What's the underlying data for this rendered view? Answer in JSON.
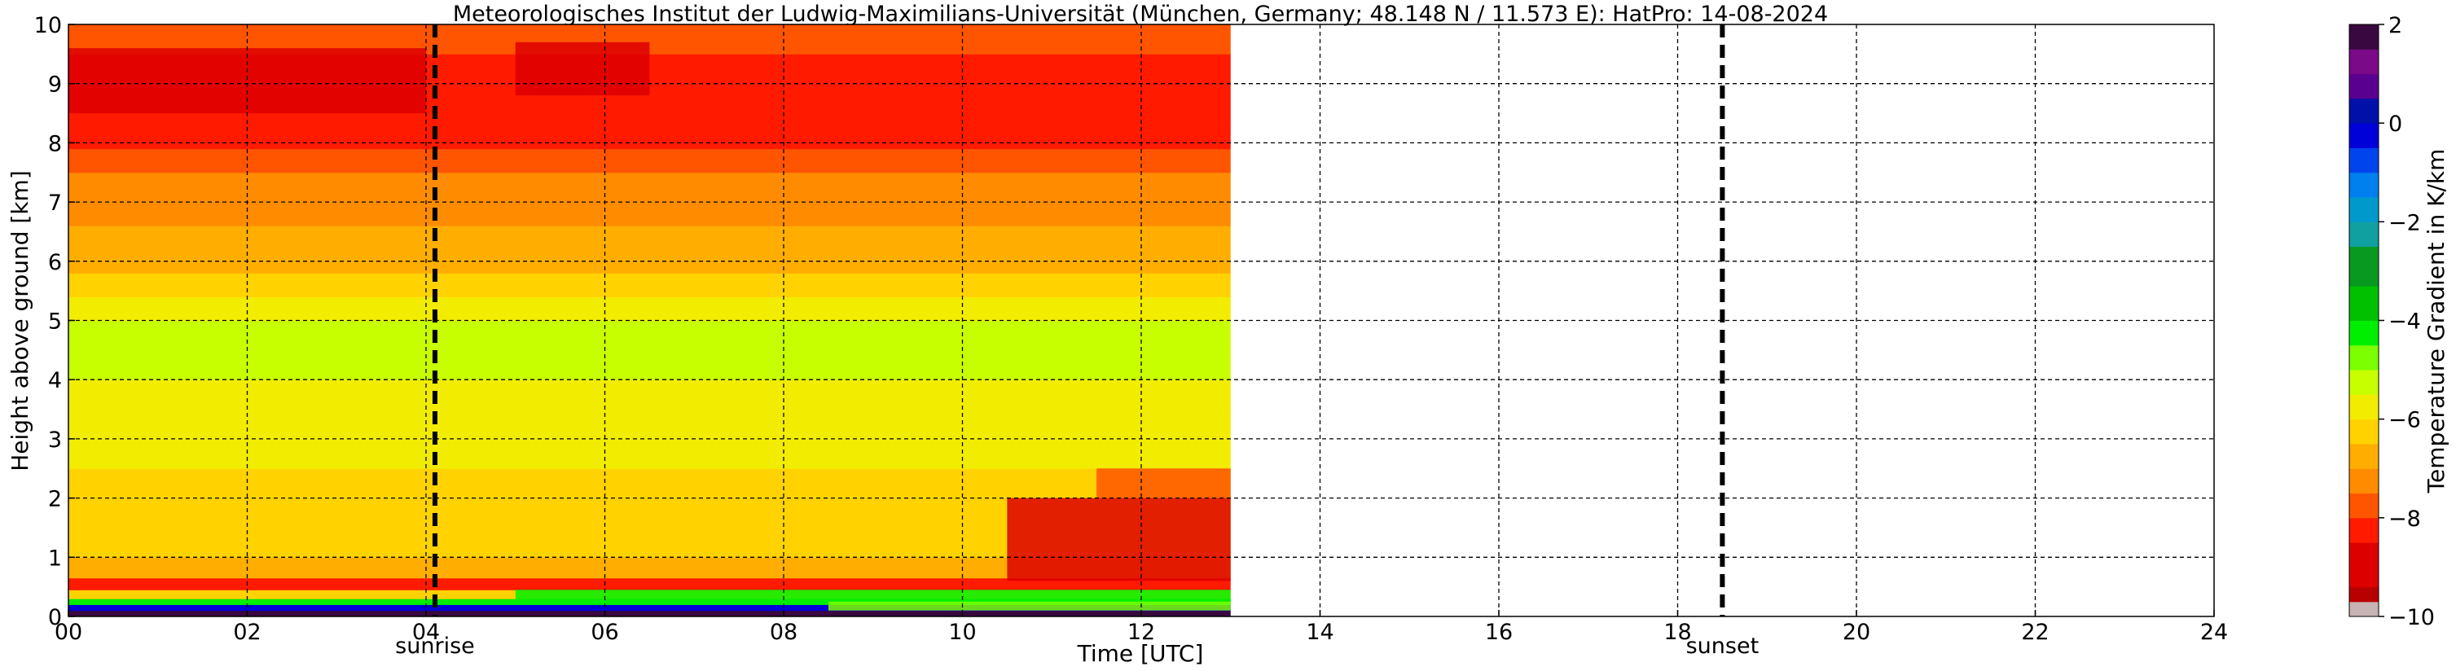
{
  "chart_data": {
    "type": "heatmap",
    "title": "Meteorologisches Institut der Ludwig-Maximilians-Universität (München, Germany; 48.148 N / 11.573 E):    HatPro: 14-08-2024",
    "xlabel": "Time [UTC]",
    "ylabel": "Height above ground [km]",
    "xlim": [
      0,
      24
    ],
    "ylim": [
      0,
      10
    ],
    "x_ticks": [
      "00",
      "02",
      "04",
      "06",
      "08",
      "10",
      "12",
      "14",
      "16",
      "18",
      "20",
      "22",
      "24"
    ],
    "y_ticks": [
      "0",
      "1",
      "2",
      "3",
      "4",
      "5",
      "6",
      "7",
      "8",
      "9",
      "10"
    ],
    "grid": true,
    "data_time_range_utc": [
      0,
      13
    ],
    "markers": [
      {
        "label": "sunrise",
        "time_utc": 4.1
      },
      {
        "label": "sunset",
        "time_utc": 18.5
      }
    ],
    "colorbar": {
      "label": "Temperature Gradient in K/km",
      "range": [
        -10,
        2
      ],
      "ticks": [
        "2",
        "0",
        "−2",
        "−4",
        "−6",
        "−8",
        "−10"
      ],
      "colors": [
        {
          "value": -10.0,
          "color": "#c8b4b4"
        },
        {
          "value": -9.7,
          "color": "#b90000"
        },
        {
          "value": -9.4,
          "color": "#dd0000"
        },
        {
          "value": -8.5,
          "color": "#ff1a00"
        },
        {
          "value": -8.0,
          "color": "#ff5500"
        },
        {
          "value": -7.5,
          "color": "#ff8c00"
        },
        {
          "value": -7.0,
          "color": "#ffae00"
        },
        {
          "value": -6.5,
          "color": "#ffd200"
        },
        {
          "value": -6.0,
          "color": "#f2ec00"
        },
        {
          "value": -5.5,
          "color": "#c8ff00"
        },
        {
          "value": -5.0,
          "color": "#7cff00"
        },
        {
          "value": -4.5,
          "color": "#00ee00"
        },
        {
          "value": -4.0,
          "color": "#00c000"
        },
        {
          "value": -3.3,
          "color": "#089a20"
        },
        {
          "value": -2.5,
          "color": "#10a0a0"
        },
        {
          "value": -2.0,
          "color": "#0099cc"
        },
        {
          "value": -1.5,
          "color": "#0080ee"
        },
        {
          "value": -1.0,
          "color": "#0044ee"
        },
        {
          "value": -0.5,
          "color": "#0000d8"
        },
        {
          "value": 0.0,
          "color": "#0010a8"
        },
        {
          "value": 0.5,
          "color": "#5a0090"
        },
        {
          "value": 1.0,
          "color": "#7a0a88"
        },
        {
          "value": 1.5,
          "color": "#3a0840"
        },
        {
          "value": 2.0,
          "color": "#000000"
        }
      ]
    },
    "layers": [
      {
        "z0": 0.0,
        "z1": 0.1,
        "value": 1.8
      },
      {
        "z0": 0.1,
        "z1": 0.2,
        "value": -0.5
      },
      {
        "z0": 0.2,
        "z1": 0.3,
        "value": -4.3
      },
      {
        "z0": 0.3,
        "z1": 0.45,
        "value": -6.4
      },
      {
        "z0": 0.45,
        "z1": 0.65,
        "value": -8.2
      },
      {
        "z0": 0.65,
        "z1": 1.0,
        "value": -6.6
      },
      {
        "z0": 1.0,
        "z1": 1.5,
        "value": -6.3
      },
      {
        "z0": 1.5,
        "z1": 2.0,
        "value": -6.4
      },
      {
        "z0": 2.0,
        "z1": 2.5,
        "value": -6.2
      },
      {
        "z0": 2.5,
        "z1": 3.0,
        "value": -6.0
      },
      {
        "z0": 3.0,
        "z1": 3.5,
        "value": -5.8
      },
      {
        "z0": 3.5,
        "z1": 4.0,
        "value": -5.6
      },
      {
        "z0": 4.0,
        "z1": 4.5,
        "value": -5.5
      },
      {
        "z0": 4.5,
        "z1": 5.0,
        "value": -5.5
      },
      {
        "z0": 5.0,
        "z1": 5.4,
        "value": -5.6
      },
      {
        "z0": 5.4,
        "z1": 5.8,
        "value": -6.2
      },
      {
        "z0": 5.8,
        "z1": 6.2,
        "value": -6.6
      },
      {
        "z0": 6.2,
        "z1": 6.6,
        "value": -6.9
      },
      {
        "z0": 6.6,
        "z1": 7.0,
        "value": -7.1
      },
      {
        "z0": 7.0,
        "z1": 7.5,
        "value": -7.3
      },
      {
        "z0": 7.5,
        "z1": 7.9,
        "value": -7.6
      },
      {
        "z0": 7.9,
        "z1": 8.3,
        "value": -8.1
      },
      {
        "z0": 8.3,
        "z1": 9.5,
        "value": -8.3
      },
      {
        "z0": 9.5,
        "z1": 9.8,
        "value": -8.0
      },
      {
        "z0": 9.8,
        "z1": 10.0,
        "value": -7.6
      }
    ],
    "features": [
      {
        "t0": 10.5,
        "t1": 13.0,
        "z0": 0.6,
        "z1": 2.0,
        "value": -8.6
      },
      {
        "t0": 11.5,
        "t1": 13.0,
        "z0": 2.0,
        "z1": 2.5,
        "value": -7.8
      },
      {
        "t0": 5.0,
        "t1": 13.0,
        "z0": 0.25,
        "z1": 0.45,
        "value": -4.3
      },
      {
        "t0": 8.5,
        "t1": 13.0,
        "z0": 0.1,
        "z1": 0.25,
        "value": -4.6
      },
      {
        "t0": 0.0,
        "t1": 4.0,
        "z0": 8.5,
        "z1": 9.6,
        "value": -8.6
      },
      {
        "t0": 5.0,
        "t1": 6.5,
        "z0": 8.8,
        "z1": 9.7,
        "value": -8.6
      }
    ]
  }
}
